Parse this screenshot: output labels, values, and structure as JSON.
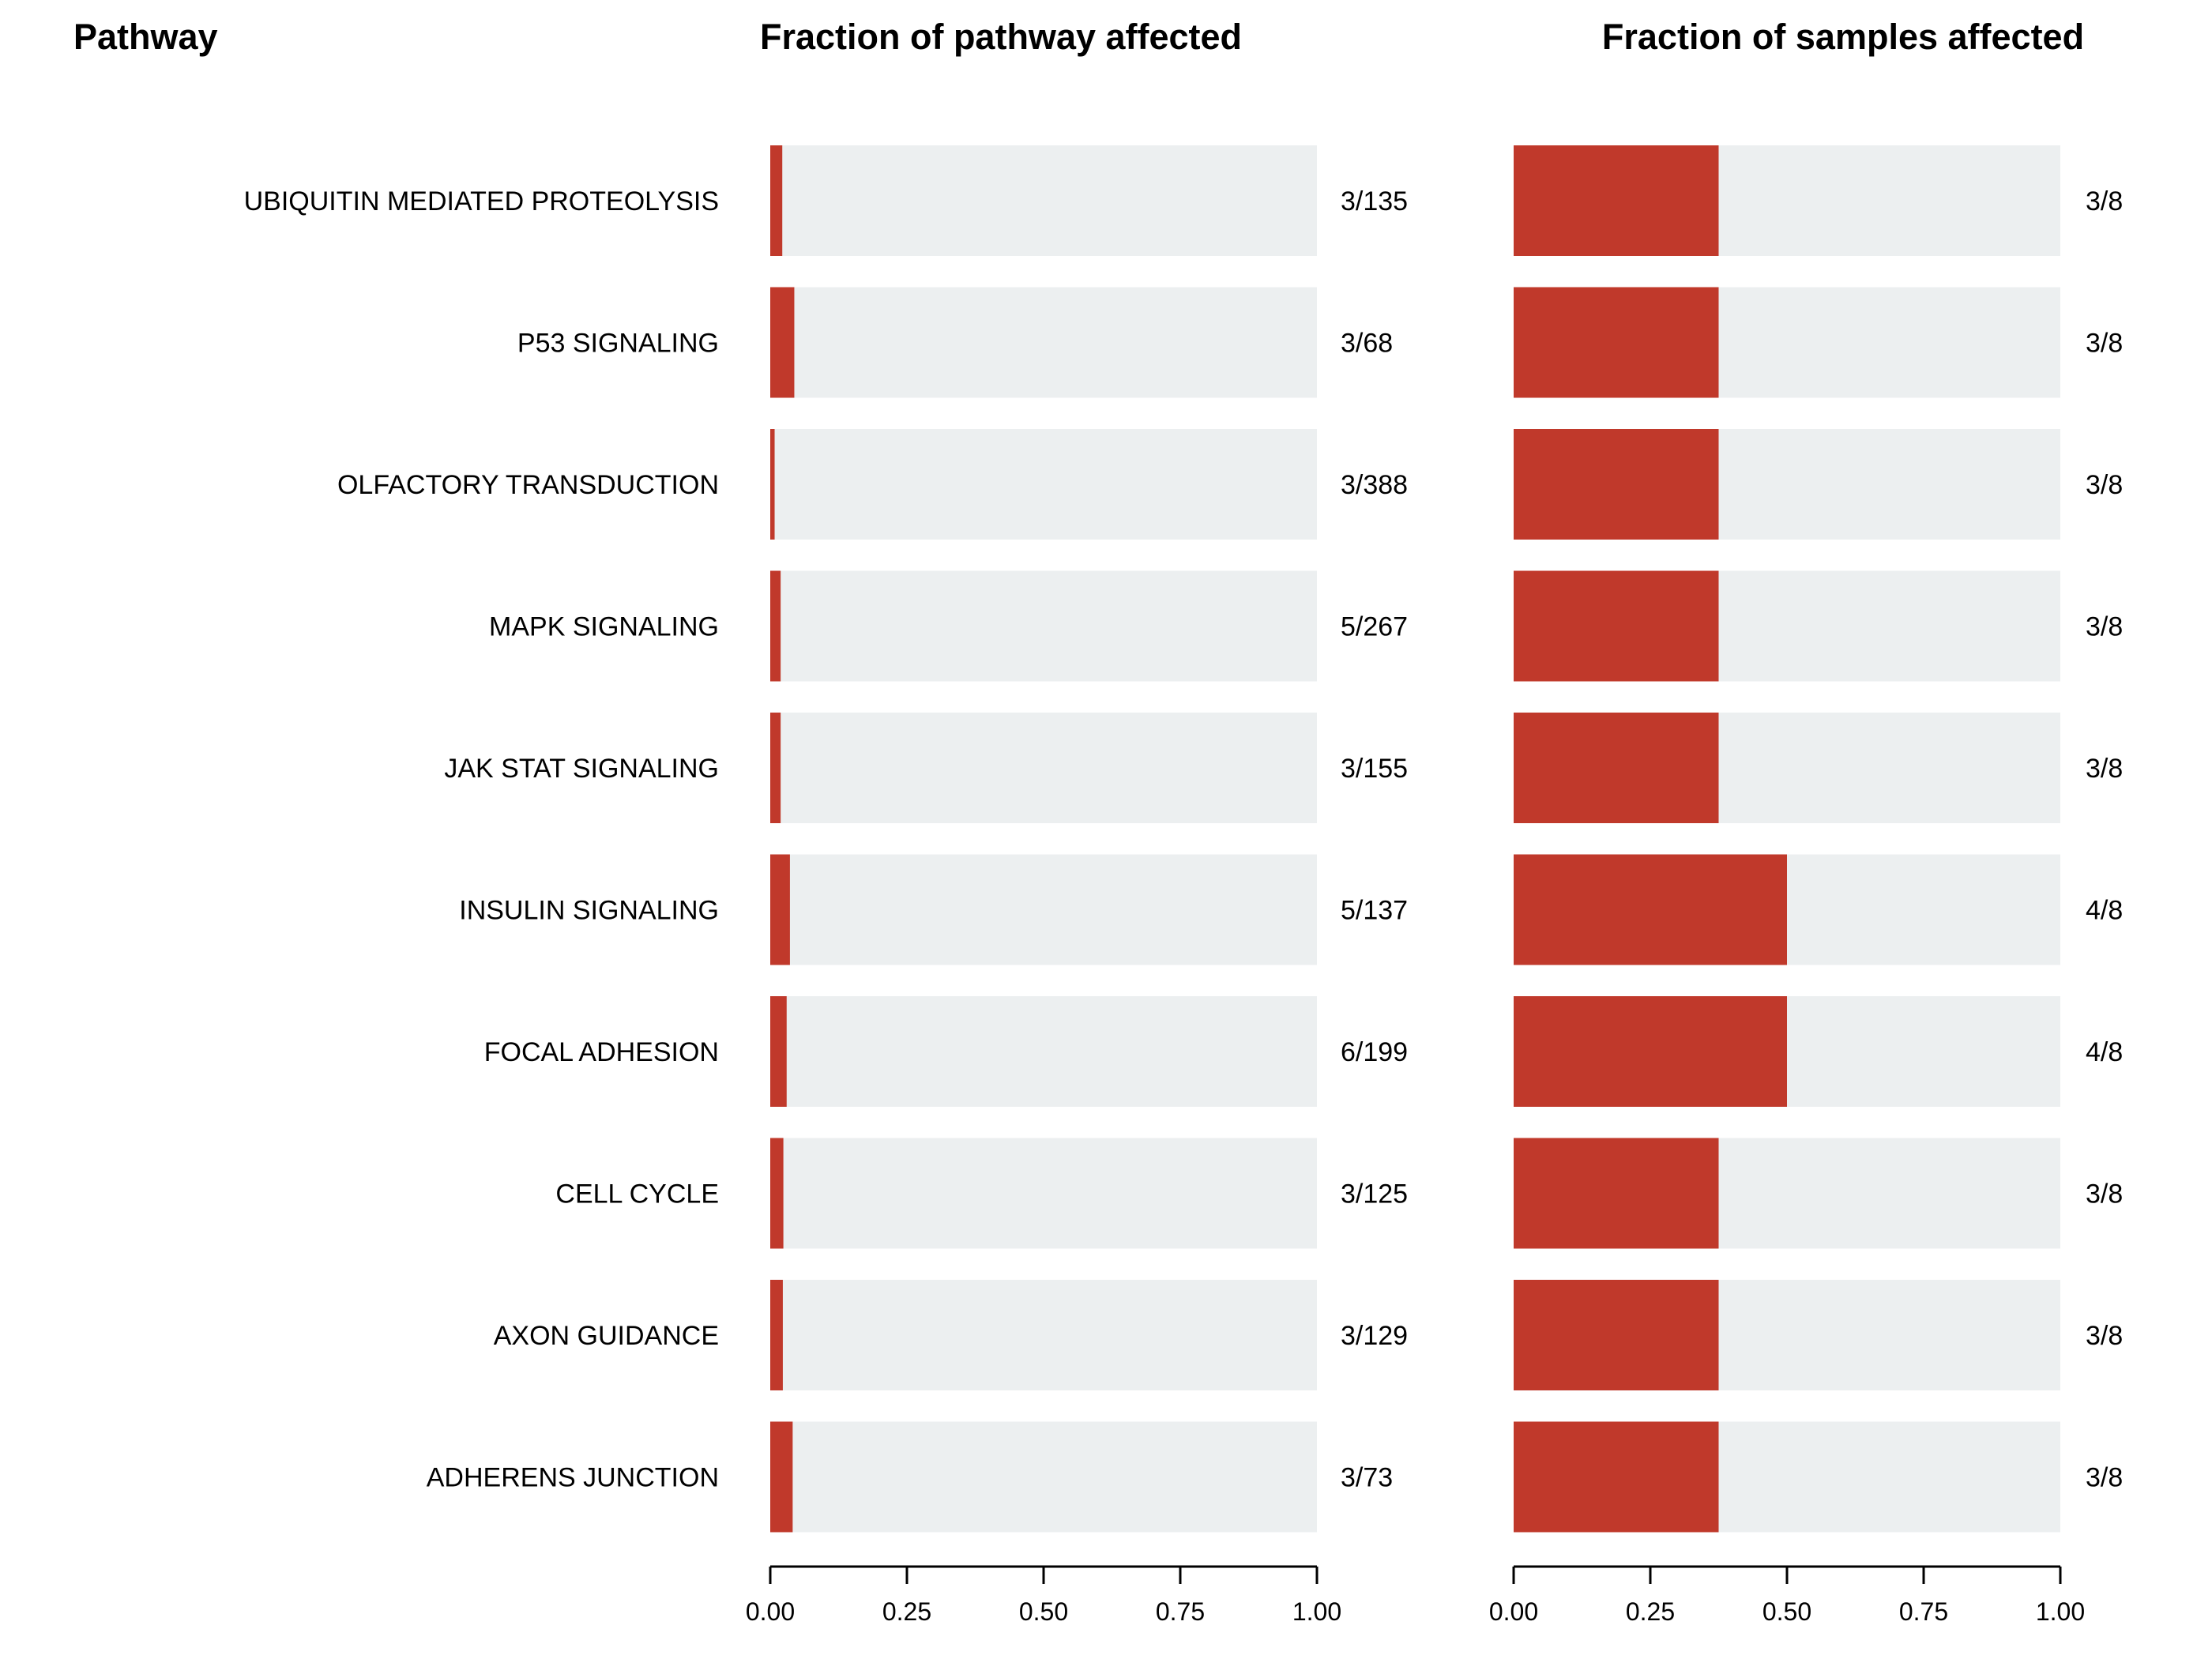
{
  "headers": {
    "pathway": "Pathway",
    "left_panel": "Fraction of pathway affected",
    "right_panel": "Fraction of samples affected"
  },
  "colors": {
    "fill": "#c0392b",
    "track": "#eceff0",
    "axis": "#000000",
    "text": "#000000"
  },
  "chart_data": [
    {
      "type": "bar",
      "orientation": "horizontal",
      "title": "Fraction of pathway affected",
      "categories": [
        "UBIQUITIN MEDIATED PROTEOLYSIS",
        "P53 SIGNALING",
        "OLFACTORY TRANSDUCTION",
        "MAPK SIGNALING",
        "JAK STAT SIGNALING",
        "INSULIN SIGNALING",
        "FOCAL ADHESION",
        "CELL CYCLE",
        "AXON GUIDANCE",
        "ADHERENS JUNCTION"
      ],
      "values": [
        0.022,
        0.044,
        0.008,
        0.019,
        0.019,
        0.036,
        0.03,
        0.024,
        0.023,
        0.041
      ],
      "value_labels": [
        "3/135",
        "3/68",
        "3/388",
        "5/267",
        "3/155",
        "5/137",
        "6/199",
        "3/125",
        "3/129",
        "3/73"
      ],
      "xlim": [
        0,
        1
      ],
      "xticks": [
        "0.00",
        "0.25",
        "0.50",
        "0.75",
        "1.00"
      ],
      "grid": false
    },
    {
      "type": "bar",
      "orientation": "horizontal",
      "title": "Fraction of samples affected",
      "categories": [
        "UBIQUITIN MEDIATED PROTEOLYSIS",
        "P53 SIGNALING",
        "OLFACTORY TRANSDUCTION",
        "MAPK SIGNALING",
        "JAK STAT SIGNALING",
        "INSULIN SIGNALING",
        "FOCAL ADHESION",
        "CELL CYCLE",
        "AXON GUIDANCE",
        "ADHERENS JUNCTION"
      ],
      "values": [
        0.375,
        0.375,
        0.375,
        0.375,
        0.375,
        0.5,
        0.5,
        0.375,
        0.375,
        0.375
      ],
      "value_labels": [
        "3/8",
        "3/8",
        "3/8",
        "3/8",
        "3/8",
        "4/8",
        "4/8",
        "3/8",
        "3/8",
        "3/8"
      ],
      "xlim": [
        0,
        1
      ],
      "xticks": [
        "0.00",
        "0.25",
        "0.50",
        "0.75",
        "1.00"
      ],
      "grid": false
    }
  ]
}
